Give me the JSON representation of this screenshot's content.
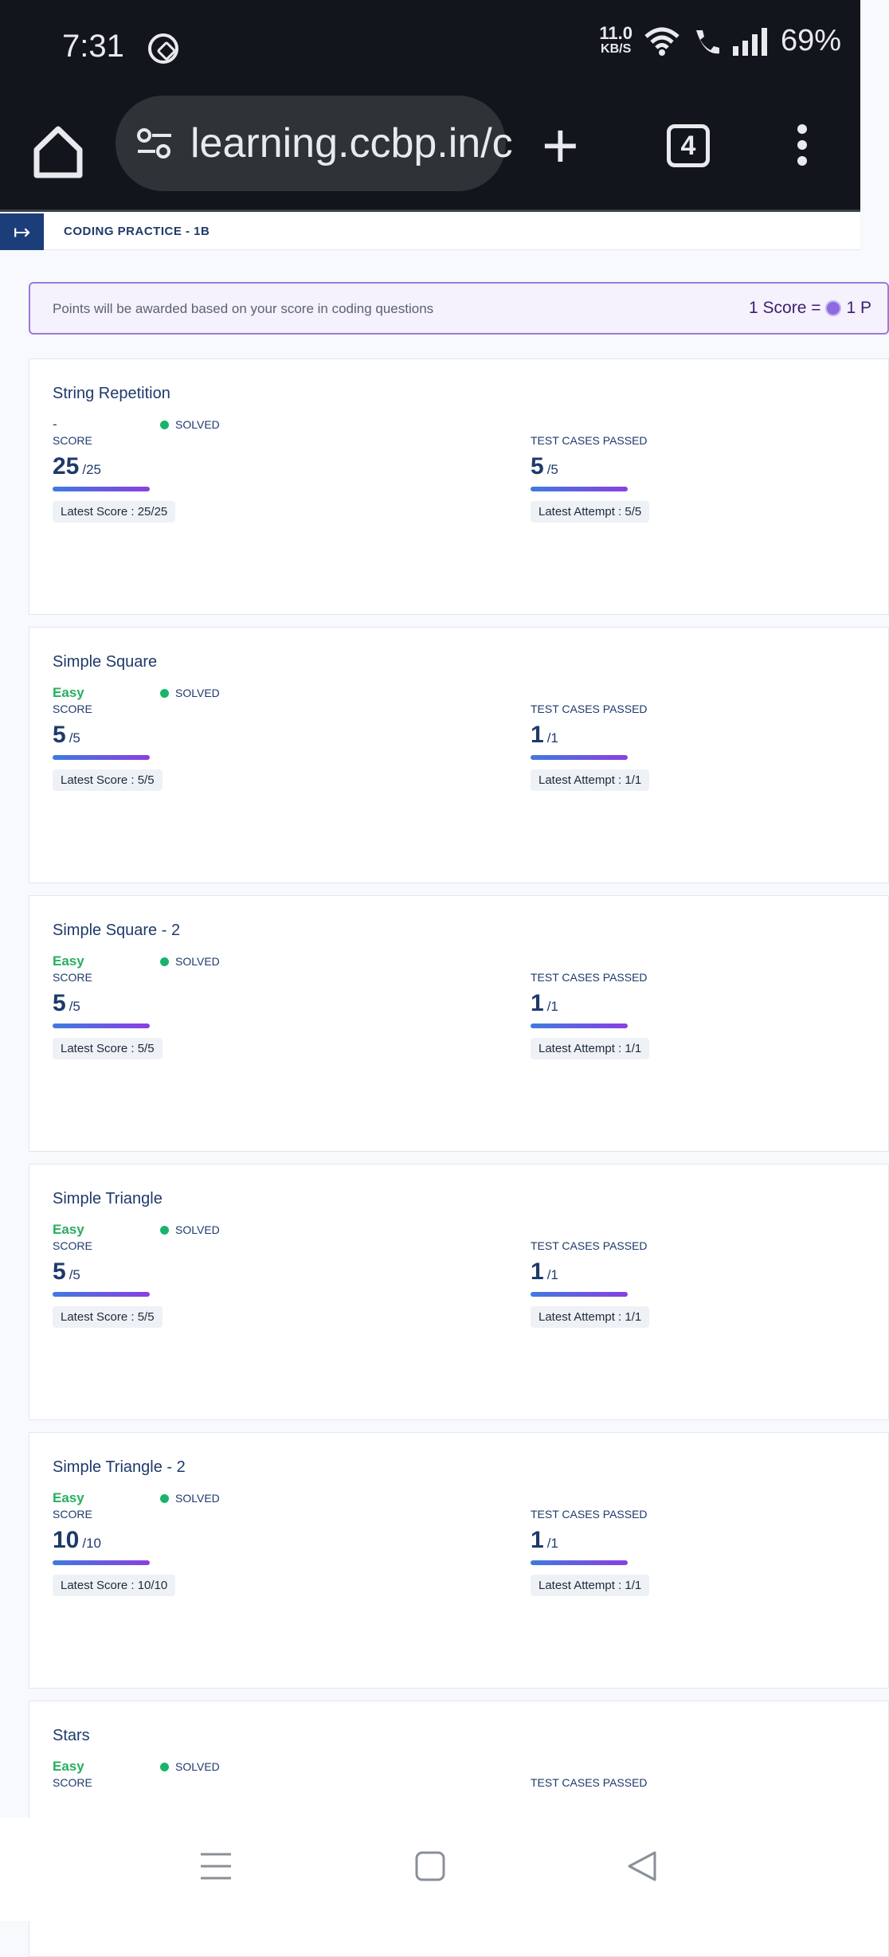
{
  "status_bar": {
    "time": "7:31",
    "net_speed_value": "11.0",
    "net_speed_unit": "KB/S",
    "battery": "69%"
  },
  "browser": {
    "url": "learning.ccbp.in/c",
    "tab_count": "4"
  },
  "header": {
    "title": "CODING PRACTICE - 1B"
  },
  "banner": {
    "text": "Points will be awarded based on your score in coding questions",
    "conversion_left": "1 Score =",
    "conversion_right": "1 P"
  },
  "labels": {
    "score": "SCORE",
    "test_cases": "TEST CASES PASSED"
  },
  "questions": [
    {
      "title": "String Repetition",
      "difficulty": "-",
      "status": "SOLVED",
      "score": "25",
      "score_total": "/25",
      "latest_score": "Latest Score : 25/25",
      "tests": "5",
      "tests_total": "/5",
      "latest_attempt": "Latest Attempt : 5/5"
    },
    {
      "title": "Simple Square",
      "difficulty": "Easy",
      "status": "SOLVED",
      "score": "5",
      "score_total": "/5",
      "latest_score": "Latest Score : 5/5",
      "tests": "1",
      "tests_total": "/1",
      "latest_attempt": "Latest Attempt : 1/1"
    },
    {
      "title": "Simple Square - 2",
      "difficulty": "Easy",
      "status": "SOLVED",
      "score": "5",
      "score_total": "/5",
      "latest_score": "Latest Score : 5/5",
      "tests": "1",
      "tests_total": "/1",
      "latest_attempt": "Latest Attempt : 1/1"
    },
    {
      "title": "Simple Triangle",
      "difficulty": "Easy",
      "status": "SOLVED",
      "score": "5",
      "score_total": "/5",
      "latest_score": "Latest Score : 5/5",
      "tests": "1",
      "tests_total": "/1",
      "latest_attempt": "Latest Attempt : 1/1"
    },
    {
      "title": "Simple Triangle - 2",
      "difficulty": "Easy",
      "status": "SOLVED",
      "score": "10",
      "score_total": "/10",
      "latest_score": "Latest Score : 10/10",
      "tests": "1",
      "tests_total": "/1",
      "latest_attempt": "Latest Attempt : 1/1"
    },
    {
      "title": "Stars",
      "difficulty": "Easy",
      "status": "SOLVED"
    }
  ],
  "colors": {
    "easy": "#27ae60",
    "solved_dot": "#19b36b",
    "brand_blue": "#1b3d7a",
    "banner_border": "#9b7ad6"
  }
}
